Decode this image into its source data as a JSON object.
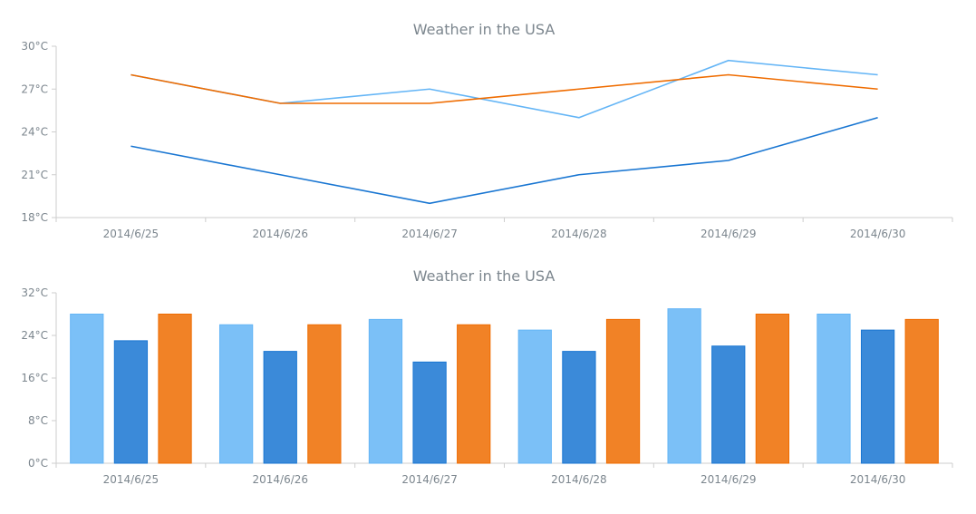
{
  "colors": {
    "series_a": "#64b5f6",
    "series_b": "#1976d2",
    "series_c": "#ef6c00",
    "axis": "#cecece",
    "text": "#7c868e"
  },
  "chart_data": [
    {
      "type": "line",
      "title": "Weather in the USA",
      "categories": [
        "2014/6/25",
        "2014/6/26",
        "2014/6/27",
        "2014/6/28",
        "2014/6/29",
        "2014/6/30"
      ],
      "series": [
        {
          "color": "#64b5f6",
          "values": [
            28,
            26,
            27,
            25,
            29,
            28
          ]
        },
        {
          "color": "#1976d2",
          "values": [
            23,
            21,
            19,
            21,
            22,
            25
          ]
        },
        {
          "color": "#ef6c00",
          "values": [
            28,
            26,
            26,
            27,
            28,
            27
          ]
        }
      ],
      "ylim": [
        18,
        30
      ],
      "yticks": [
        18,
        21,
        24,
        27,
        30
      ],
      "ytick_labels": [
        "18°C",
        "21°C",
        "24°C",
        "27°C",
        "30°C"
      ],
      "grid": false
    },
    {
      "type": "bar",
      "title": "Weather in the USA",
      "categories": [
        "2014/6/25",
        "2014/6/26",
        "2014/6/27",
        "2014/6/28",
        "2014/6/29",
        "2014/6/30"
      ],
      "series": [
        {
          "color": "#64b5f6",
          "values": [
            28,
            26,
            27,
            25,
            29,
            28
          ]
        },
        {
          "color": "#1976d2",
          "values": [
            23,
            21,
            19,
            21,
            22,
            25
          ]
        },
        {
          "color": "#ef6c00",
          "values": [
            28,
            26,
            26,
            27,
            28,
            27
          ]
        }
      ],
      "ylim": [
        0,
        32
      ],
      "yticks": [
        0,
        8,
        16,
        24,
        32
      ],
      "ytick_labels": [
        "0°C",
        "8°C",
        "16°C",
        "24°C",
        "32°C"
      ],
      "grid": false
    }
  ]
}
